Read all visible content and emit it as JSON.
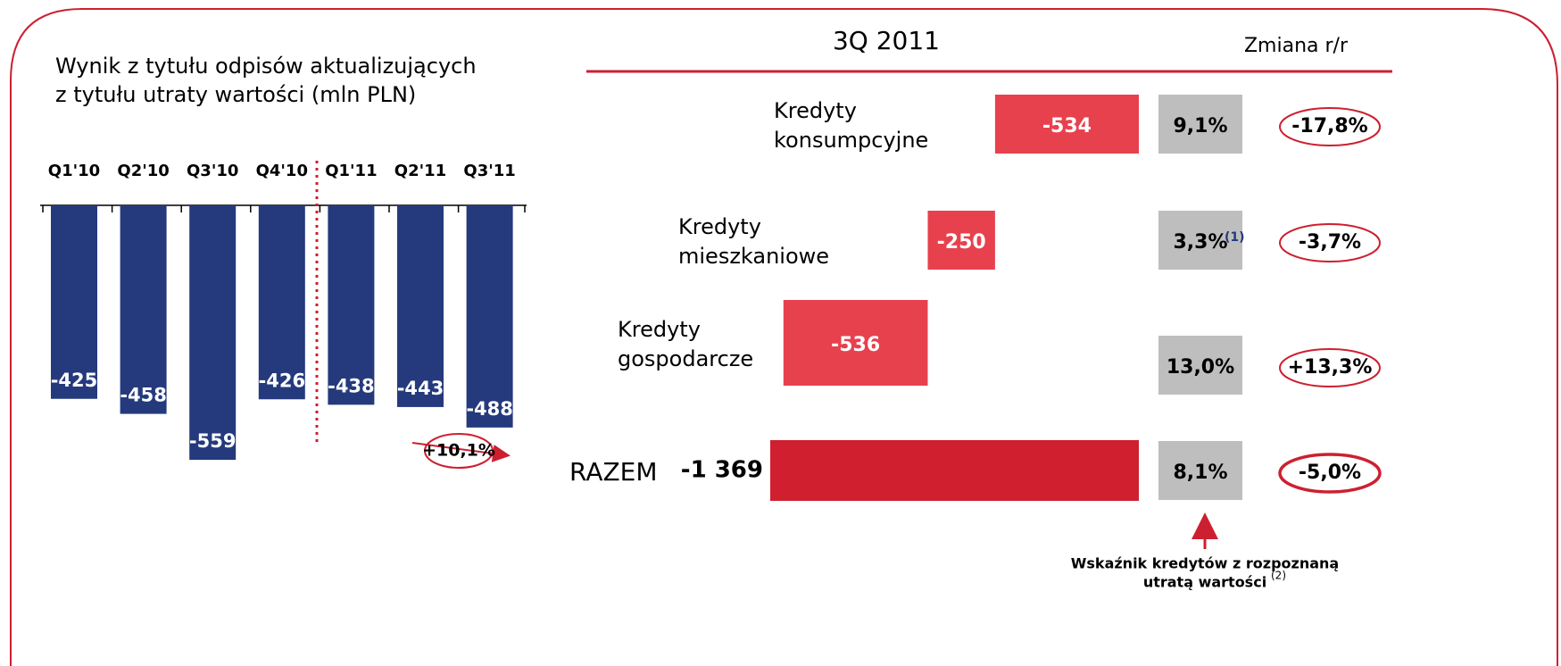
{
  "chart_data": [
    {
      "type": "bar",
      "title": [
        "Wynik z tytułu odpisów aktualizujących",
        "z tytułu utraty wartości (mln PLN)"
      ],
      "categories": [
        "Q1'10",
        "Q2'10",
        "Q3'10",
        "Q4'10",
        "Q1'11",
        "Q2'11",
        "Q3'11"
      ],
      "values": [
        -425,
        -458,
        -559,
        -426,
        -438,
        -443,
        -488
      ],
      "color": "#253a7c",
      "ylim": [
        -600,
        0
      ],
      "annotation": "+10,1%"
    },
    {
      "type": "waterfall",
      "title": "3Q 2011",
      "change_header": "Zmiana r/r",
      "categories": [
        [
          "Kredyty",
          "konsumpcyjne"
        ],
        [
          "Kredyty",
          "mieszkaniowe"
        ],
        [
          "Kredyty",
          "gospodarcze"
        ]
      ],
      "values": [
        -534,
        -250,
        -536
      ],
      "color": "#e8414e",
      "total": {
        "name": "RAZEM",
        "value": -1369,
        "value_label": "-1 369",
        "color": "#d01f2e"
      },
      "xlim": [
        -1400,
        0
      ],
      "share": [
        "9,1%",
        "3,3%",
        "13,0%",
        "8,1%"
      ],
      "share_footnote": "(1)",
      "change": [
        "-17,8%",
        "-3,7%",
        "+13,3%",
        "-5,0%"
      ],
      "note": [
        "Wskaźnik kredytów z rozpoznaną",
        "utratą wartości"
      ],
      "note_ref": "(2)"
    }
  ]
}
